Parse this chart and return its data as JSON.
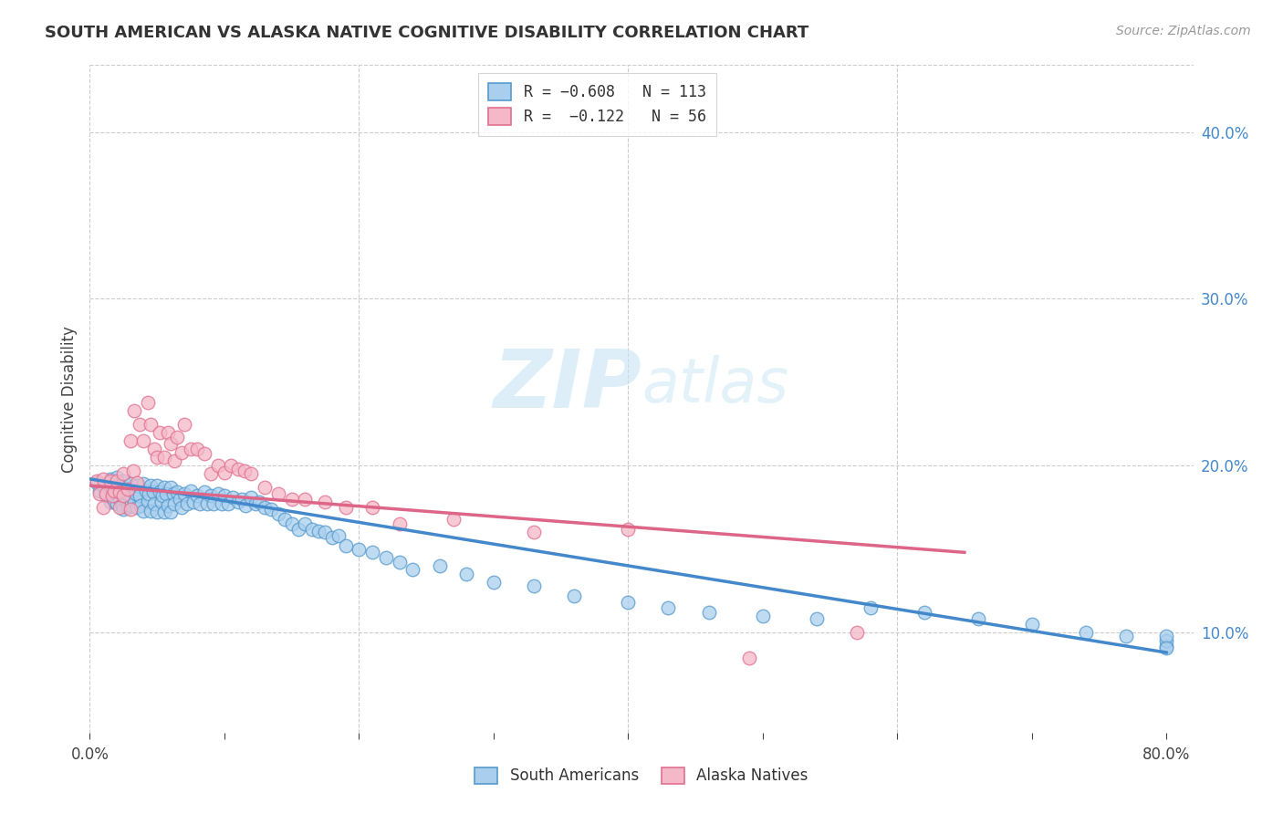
{
  "title": "SOUTH AMERICAN VS ALASKA NATIVE COGNITIVE DISABILITY CORRELATION CHART",
  "source": "Source: ZipAtlas.com",
  "ylabel": "Cognitive Disability",
  "xlim": [
    0.0,
    0.82
  ],
  "ylim": [
    0.04,
    0.44
  ],
  "xtick_positions": [
    0.0,
    0.1,
    0.2,
    0.3,
    0.4,
    0.5,
    0.6,
    0.7,
    0.8
  ],
  "xtick_labels": [
    "0.0%",
    "",
    "",
    "",
    "",
    "",
    "",
    "",
    "80.0%"
  ],
  "ytick_right_vals": [
    0.1,
    0.2,
    0.3,
    0.4
  ],
  "ytick_right_labels": [
    "10.0%",
    "20.0%",
    "30.0%",
    "40.0%"
  ],
  "blue_color": "#aacfee",
  "pink_color": "#f5b8c8",
  "blue_edge_color": "#5599cc",
  "pink_edge_color": "#e07090",
  "blue_line_color": "#4488cc",
  "pink_line_color": "#dd6688",
  "watermark_color": "#c8e4f5",
  "grid_color": "#cccccc",
  "blue_scatter_x": [
    0.005,
    0.007,
    0.01,
    0.012,
    0.015,
    0.015,
    0.017,
    0.018,
    0.02,
    0.02,
    0.022,
    0.022,
    0.023,
    0.024,
    0.025,
    0.025,
    0.027,
    0.027,
    0.028,
    0.028,
    0.03,
    0.03,
    0.032,
    0.033,
    0.034,
    0.035,
    0.035,
    0.037,
    0.038,
    0.04,
    0.04,
    0.042,
    0.043,
    0.044,
    0.045,
    0.045,
    0.047,
    0.048,
    0.05,
    0.05,
    0.052,
    0.053,
    0.054,
    0.055,
    0.055,
    0.057,
    0.058,
    0.06,
    0.06,
    0.062,
    0.063,
    0.065,
    0.067,
    0.068,
    0.07,
    0.072,
    0.075,
    0.077,
    0.08,
    0.082,
    0.085,
    0.087,
    0.09,
    0.092,
    0.095,
    0.098,
    0.1,
    0.103,
    0.106,
    0.11,
    0.113,
    0.116,
    0.12,
    0.123,
    0.126,
    0.13,
    0.135,
    0.14,
    0.145,
    0.15,
    0.155,
    0.16,
    0.165,
    0.17,
    0.175,
    0.18,
    0.185,
    0.19,
    0.2,
    0.21,
    0.22,
    0.23,
    0.24,
    0.26,
    0.28,
    0.3,
    0.33,
    0.36,
    0.4,
    0.43,
    0.46,
    0.5,
    0.54,
    0.58,
    0.62,
    0.66,
    0.7,
    0.74,
    0.77,
    0.8,
    0.8,
    0.8,
    0.8
  ],
  "blue_scatter_y": [
    0.19,
    0.185,
    0.188,
    0.182,
    0.192,
    0.178,
    0.186,
    0.179,
    0.193,
    0.177,
    0.188,
    0.18,
    0.184,
    0.176,
    0.191,
    0.174,
    0.186,
    0.179,
    0.183,
    0.175,
    0.189,
    0.176,
    0.185,
    0.178,
    0.183,
    0.188,
    0.175,
    0.182,
    0.176,
    0.189,
    0.173,
    0.185,
    0.179,
    0.183,
    0.188,
    0.173,
    0.184,
    0.177,
    0.188,
    0.172,
    0.184,
    0.178,
    0.182,
    0.187,
    0.172,
    0.183,
    0.176,
    0.187,
    0.172,
    0.183,
    0.177,
    0.184,
    0.18,
    0.175,
    0.183,
    0.177,
    0.185,
    0.178,
    0.182,
    0.177,
    0.184,
    0.177,
    0.182,
    0.177,
    0.183,
    0.177,
    0.182,
    0.177,
    0.181,
    0.178,
    0.18,
    0.176,
    0.181,
    0.177,
    0.178,
    0.175,
    0.174,
    0.171,
    0.168,
    0.165,
    0.162,
    0.165,
    0.162,
    0.161,
    0.16,
    0.157,
    0.158,
    0.152,
    0.15,
    0.148,
    0.145,
    0.142,
    0.138,
    0.14,
    0.135,
    0.13,
    0.128,
    0.122,
    0.118,
    0.115,
    0.112,
    0.11,
    0.108,
    0.115,
    0.112,
    0.108,
    0.105,
    0.1,
    0.098,
    0.092,
    0.095,
    0.098,
    0.091
  ],
  "pink_scatter_x": [
    0.005,
    0.007,
    0.01,
    0.01,
    0.012,
    0.015,
    0.017,
    0.018,
    0.02,
    0.022,
    0.022,
    0.025,
    0.025,
    0.028,
    0.03,
    0.03,
    0.032,
    0.033,
    0.035,
    0.037,
    0.04,
    0.043,
    0.045,
    0.048,
    0.05,
    0.052,
    0.055,
    0.058,
    0.06,
    0.063,
    0.065,
    0.068,
    0.07,
    0.075,
    0.08,
    0.085,
    0.09,
    0.095,
    0.1,
    0.105,
    0.11,
    0.115,
    0.12,
    0.13,
    0.14,
    0.15,
    0.16,
    0.175,
    0.19,
    0.21,
    0.23,
    0.27,
    0.33,
    0.4,
    0.49,
    0.57
  ],
  "pink_scatter_y": [
    0.191,
    0.183,
    0.192,
    0.175,
    0.183,
    0.191,
    0.182,
    0.185,
    0.191,
    0.184,
    0.175,
    0.195,
    0.182,
    0.186,
    0.215,
    0.174,
    0.197,
    0.233,
    0.19,
    0.225,
    0.215,
    0.238,
    0.225,
    0.21,
    0.205,
    0.22,
    0.205,
    0.22,
    0.213,
    0.203,
    0.217,
    0.208,
    0.225,
    0.21,
    0.21,
    0.207,
    0.195,
    0.2,
    0.196,
    0.2,
    0.198,
    0.197,
    0.195,
    0.187,
    0.183,
    0.18,
    0.18,
    0.178,
    0.175,
    0.175,
    0.165,
    0.168,
    0.16,
    0.162,
    0.085,
    0.1
  ],
  "blue_trend_x": [
    0.0,
    0.8
  ],
  "blue_trend_y": [
    0.192,
    0.088
  ],
  "pink_trend_x": [
    0.0,
    0.65
  ],
  "pink_trend_y": [
    0.188,
    0.148
  ],
  "legend_top_labels": [
    "R = -0.608   N = 113",
    "R =  -0.122   N = 56"
  ],
  "legend_bottom_labels": [
    "South Americans",
    "Alaska Natives"
  ]
}
